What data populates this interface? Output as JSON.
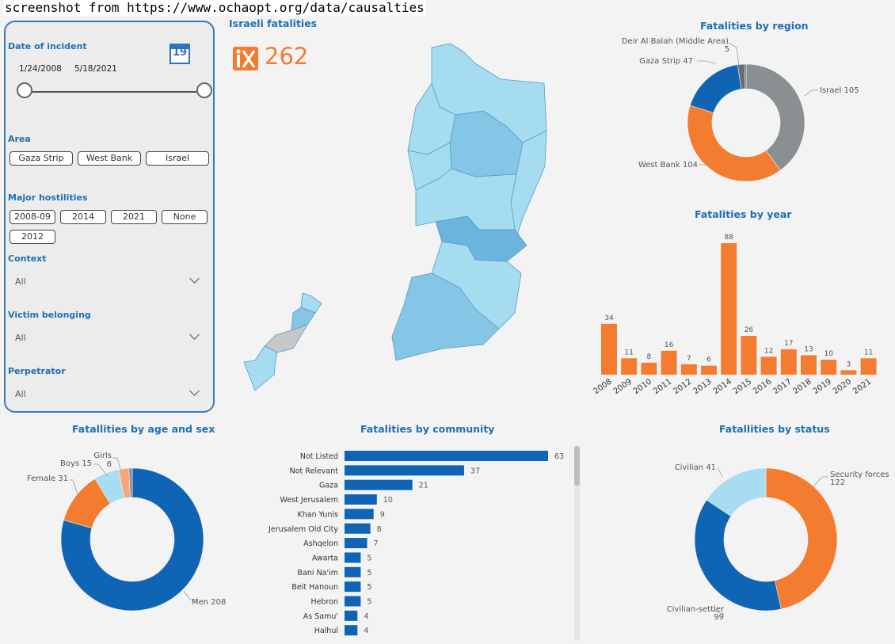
{
  "caption": "screenshot from https://www.ochaopt.org/data/causalties",
  "filters": {
    "date_label": "Date of incident",
    "calendar_day": "19",
    "date_start": "1/24/2008",
    "date_end": "5/18/2021",
    "area_label": "Area",
    "area_options": [
      "Gaza Strip",
      "West Bank",
      "Israel"
    ],
    "hostilities_label": "Major hostilities",
    "hostilities_options": [
      "2008-09",
      "2014",
      "2021",
      "None",
      "2012"
    ],
    "context_label": "Context",
    "context_value": "All",
    "victim_label": "Victim belonging",
    "victim_value": "All",
    "perpetrator_label": "Perpetrator",
    "perpetrator_value": "All"
  },
  "kpi": {
    "title": "Israeli fatalities",
    "value": "262",
    "icon": "person-x-icon",
    "color": "#f47c30"
  },
  "colors": {
    "orange": "#f47c30",
    "blue": "#0f64b4",
    "gray": "#8a8f91",
    "light_blue": "#a8dcf0",
    "peach": "#f8a47d",
    "title": "#1f6fb5",
    "map_light": "#a6dcef",
    "map_mid": "#85c6e6",
    "map_dark": "#6ab4de",
    "map_gray": "#c7c7c7"
  },
  "chart_data": [
    {
      "id": "region",
      "type": "pie",
      "title": "Fatalities by region",
      "slices": [
        {
          "label": "Israel",
          "value": 105,
          "color": "#8a8f91"
        },
        {
          "label": "West Bank",
          "value": 104,
          "color": "#f47c30"
        },
        {
          "label": "Gaza Strip",
          "value": 47,
          "color": "#0f64b4"
        },
        {
          "label": "Deir Al Balah (Middle Area)",
          "value": 5,
          "color": "#6d6d6d"
        },
        {
          "label": "",
          "value": 1,
          "color": "#2b5d9c"
        }
      ]
    },
    {
      "id": "year",
      "type": "bar",
      "title": "Fatalities by year",
      "categories": [
        "2008",
        "2009",
        "2010",
        "2011",
        "2012",
        "2013",
        "2014",
        "2015",
        "2016",
        "2017",
        "2018",
        "2019",
        "2020",
        "2021"
      ],
      "values": [
        34,
        11,
        8,
        16,
        7,
        6,
        88,
        26,
        12,
        17,
        13,
        10,
        3,
        11
      ],
      "color": "#f47c30"
    },
    {
      "id": "age_sex",
      "type": "pie",
      "title": "Fatallities by age and sex",
      "slices": [
        {
          "label": "Men",
          "value": 208,
          "color": "#0f64b4"
        },
        {
          "label": "Female",
          "value": 31,
          "color": "#f47c30"
        },
        {
          "label": "Boys",
          "value": 15,
          "color": "#a8dcf0"
        },
        {
          "label": "Girls",
          "value": 6,
          "color": "#f8a47d"
        },
        {
          "label": "",
          "value": 2,
          "color": "#8a8f91"
        }
      ]
    },
    {
      "id": "community",
      "type": "bar",
      "orientation": "horizontal",
      "title": "Fatalities by community",
      "categories": [
        "Not Listed",
        "Not Relevant",
        "Gaza",
        "West Jerusalem",
        "Khan Yunis",
        "Jerusalem Old City",
        "Ashqelon",
        "Awarta",
        "Bani Na'im",
        "Beit Hanoun",
        "Hebron",
        "As Samu'",
        "Halhul"
      ],
      "values": [
        63,
        37,
        21,
        10,
        9,
        8,
        7,
        5,
        5,
        5,
        5,
        4,
        4
      ],
      "color": "#0f64b4"
    },
    {
      "id": "status",
      "type": "pie",
      "title": "Fatallities by status",
      "slices": [
        {
          "label": "Security forces",
          "value": 122,
          "color": "#f47c30"
        },
        {
          "label": "Civilian-settler",
          "value": 99,
          "color": "#0f64b4"
        },
        {
          "label": "Civilian",
          "value": 41,
          "color": "#a8dcf0"
        }
      ]
    }
  ]
}
